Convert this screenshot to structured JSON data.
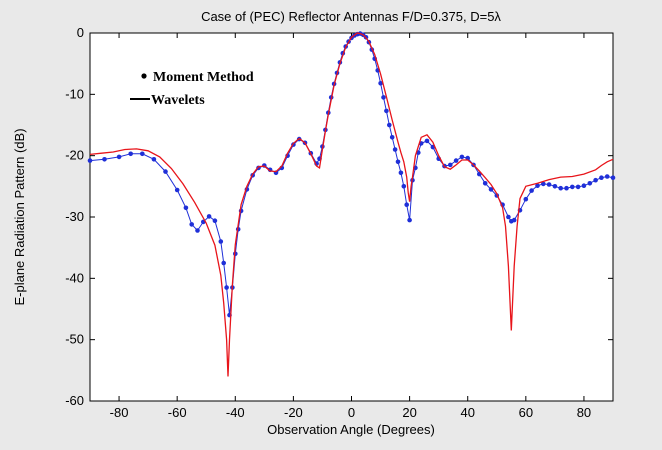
{
  "chart_data": {
    "type": "line",
    "title": "Case of (PEC) Reflector Antennas F/D=0.375, D=5λ",
    "xlabel": "Observation Angle (Degrees)",
    "ylabel": "E-plane Radiation Pattern  (dB)",
    "xlim": [
      -90,
      90
    ],
    "ylim": [
      -60,
      0
    ],
    "x_ticks": [
      -80,
      -60,
      -40,
      -20,
      0,
      20,
      40,
      60,
      80
    ],
    "y_ticks": [
      0,
      -10,
      -20,
      -30,
      -40,
      -50,
      -60
    ],
    "grid": false,
    "legend_position": "top-left",
    "series": [
      {
        "name": "Moment Method",
        "style": "markers",
        "color": "#1f2fd8",
        "x": [
          -90,
          -85,
          -80,
          -76,
          -72,
          -68,
          -64,
          -60,
          -57,
          -55,
          -53,
          -51,
          -49,
          -47,
          -45,
          -44,
          -43,
          -42,
          -41,
          -40,
          -39,
          -38,
          -36,
          -34,
          -32,
          -30,
          -28,
          -26,
          -24,
          -22,
          -20,
          -18,
          -16,
          -14,
          -12,
          -11,
          -10,
          -9,
          -8,
          -7,
          -6,
          -5,
          -4,
          -3,
          -2,
          -1,
          0,
          1,
          2,
          3,
          4,
          5,
          6,
          7,
          8,
          9,
          10,
          11,
          12,
          13,
          14,
          15,
          16,
          17,
          18,
          19,
          20,
          21,
          22,
          23,
          24,
          26,
          28,
          30,
          32,
          34,
          36,
          38,
          40,
          42,
          44,
          46,
          48,
          50,
          52,
          54,
          55,
          56,
          58,
          60,
          62,
          64,
          66,
          68,
          70,
          72,
          74,
          76,
          78,
          80,
          82,
          84,
          86,
          88,
          90
        ],
        "y": [
          -20.8,
          -20.6,
          -20.2,
          -19.7,
          -19.7,
          -20.6,
          -22.6,
          -25.6,
          -28.5,
          -31.2,
          -32.2,
          -30.8,
          -29.9,
          -30.6,
          -34.0,
          -37.5,
          -41.5,
          -46.0,
          -41.5,
          -36.0,
          -32.0,
          -29.0,
          -25.5,
          -23.2,
          -22.0,
          -21.6,
          -22.3,
          -22.8,
          -22.0,
          -20.0,
          -18.2,
          -17.3,
          -17.9,
          -19.6,
          -21.3,
          -20.5,
          -18.5,
          -15.8,
          -13.0,
          -10.5,
          -8.3,
          -6.5,
          -4.8,
          -3.3,
          -2.2,
          -1.4,
          -0.8,
          -0.4,
          -0.2,
          -0.1,
          -0.3,
          -0.7,
          -1.5,
          -2.7,
          -4.2,
          -6.1,
          -8.2,
          -10.5,
          -12.7,
          -15.0,
          -17.0,
          -19.0,
          -21.0,
          -22.8,
          -25.0,
          -28.0,
          -30.5,
          -24.0,
          -22.0,
          -19.5,
          -18.0,
          -17.6,
          -18.6,
          -20.5,
          -21.7,
          -21.5,
          -20.8,
          -20.2,
          -20.4,
          -21.5,
          -23.0,
          -24.5,
          -25.5,
          -26.5,
          -28.0,
          -30.0,
          -30.7,
          -30.5,
          -28.9,
          -27.1,
          -25.7,
          -24.9,
          -24.6,
          -24.7,
          -25.0,
          -25.3,
          -25.3,
          -25.1,
          -25.1,
          -24.9,
          -24.5,
          -24.0,
          -23.6,
          -23.4,
          -23.6
        ]
      },
      {
        "name": "Wavelets",
        "style": "line",
        "color": "#e8141a",
        "x": [
          -90,
          -86,
          -82,
          -78,
          -74,
          -70,
          -66,
          -62,
          -58,
          -54,
          -50,
          -47,
          -45,
          -44,
          -43,
          -42.5,
          -42,
          -41,
          -40,
          -38,
          -36,
          -34,
          -32,
          -30,
          -28,
          -26,
          -24,
          -22,
          -20,
          -18,
          -16,
          -14,
          -12,
          -11,
          -10,
          -9,
          -8,
          -6,
          -4,
          -2,
          0,
          2,
          3,
          4,
          5,
          6,
          8,
          10,
          12,
          14,
          16,
          17,
          18,
          19,
          19.5,
          20,
          20.5,
          21,
          22,
          24,
          26,
          28,
          30,
          32,
          34,
          36,
          38,
          40,
          42,
          44,
          46,
          48,
          50,
          52,
          53,
          54,
          55,
          56,
          57,
          58,
          60,
          64,
          68,
          72,
          76,
          80,
          84,
          86,
          88,
          90
        ],
        "y": [
          -19.8,
          -19.6,
          -19.4,
          -19.0,
          -18.9,
          -19.2,
          -20.2,
          -22.1,
          -24.6,
          -27.6,
          -31.0,
          -34.6,
          -39.5,
          -44.0,
          -50.0,
          -56.0,
          -50.0,
          -41.0,
          -34.5,
          -28.0,
          -25.0,
          -23.0,
          -21.8,
          -21.7,
          -22.5,
          -22.6,
          -21.7,
          -19.6,
          -18.0,
          -17.2,
          -17.9,
          -19.7,
          -21.7,
          -22.0,
          -19.0,
          -16.0,
          -13.3,
          -8.5,
          -5.0,
          -2.3,
          -0.7,
          0.0,
          -0.1,
          -0.3,
          -0.8,
          -1.4,
          -3.5,
          -6.7,
          -10.4,
          -14.2,
          -17.8,
          -19.5,
          -21.0,
          -23.5,
          -26.0,
          -27.5,
          -25.0,
          -23.5,
          -20.0,
          -17.0,
          -16.6,
          -17.8,
          -20.0,
          -21.8,
          -22.2,
          -21.5,
          -20.7,
          -20.7,
          -21.5,
          -22.5,
          -23.6,
          -24.7,
          -26.2,
          -28.5,
          -31.5,
          -38.0,
          -48.5,
          -38.0,
          -31.5,
          -27.0,
          -25.0,
          -24.5,
          -23.9,
          -23.5,
          -23.4,
          -23.0,
          -22.3,
          -21.6,
          -21.0,
          -20.6
        ]
      }
    ]
  }
}
